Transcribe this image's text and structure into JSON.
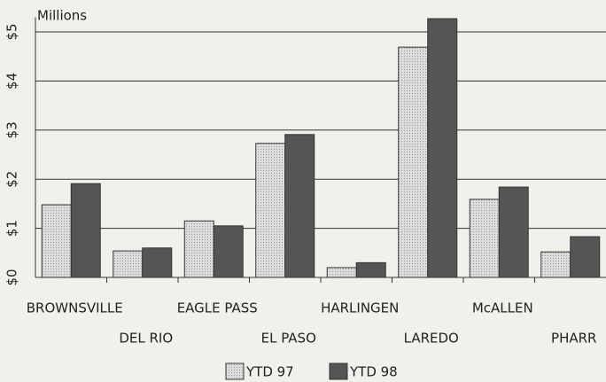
{
  "chart_data": {
    "type": "bar",
    "y_label": "Millions",
    "categories": [
      "BROWNSVILLE",
      "DEL RIO",
      "EAGLE PASS",
      "EL PASO",
      "HARLINGEN",
      "LAREDO",
      "McALLEN",
      "PHARR"
    ],
    "series": [
      {
        "name": "YTD 97",
        "color": "#d6d6d6",
        "values": [
          1.48,
          0.54,
          1.15,
          2.73,
          0.2,
          4.69,
          1.59,
          0.52
        ]
      },
      {
        "name": "YTD 98",
        "color": "#555555",
        "values": [
          1.91,
          0.6,
          1.05,
          2.91,
          0.3,
          5.27,
          1.84,
          0.83
        ]
      }
    ],
    "ylim": [
      0,
      5.3
    ],
    "yticks": [
      {
        "value": 0,
        "label": "$0"
      },
      {
        "value": 1,
        "label": "$1"
      },
      {
        "value": 2,
        "label": "$2"
      },
      {
        "value": 3,
        "label": "$3"
      },
      {
        "value": 4,
        "label": "$4"
      },
      {
        "value": 5,
        "label": "$5"
      }
    ],
    "grid": true
  }
}
